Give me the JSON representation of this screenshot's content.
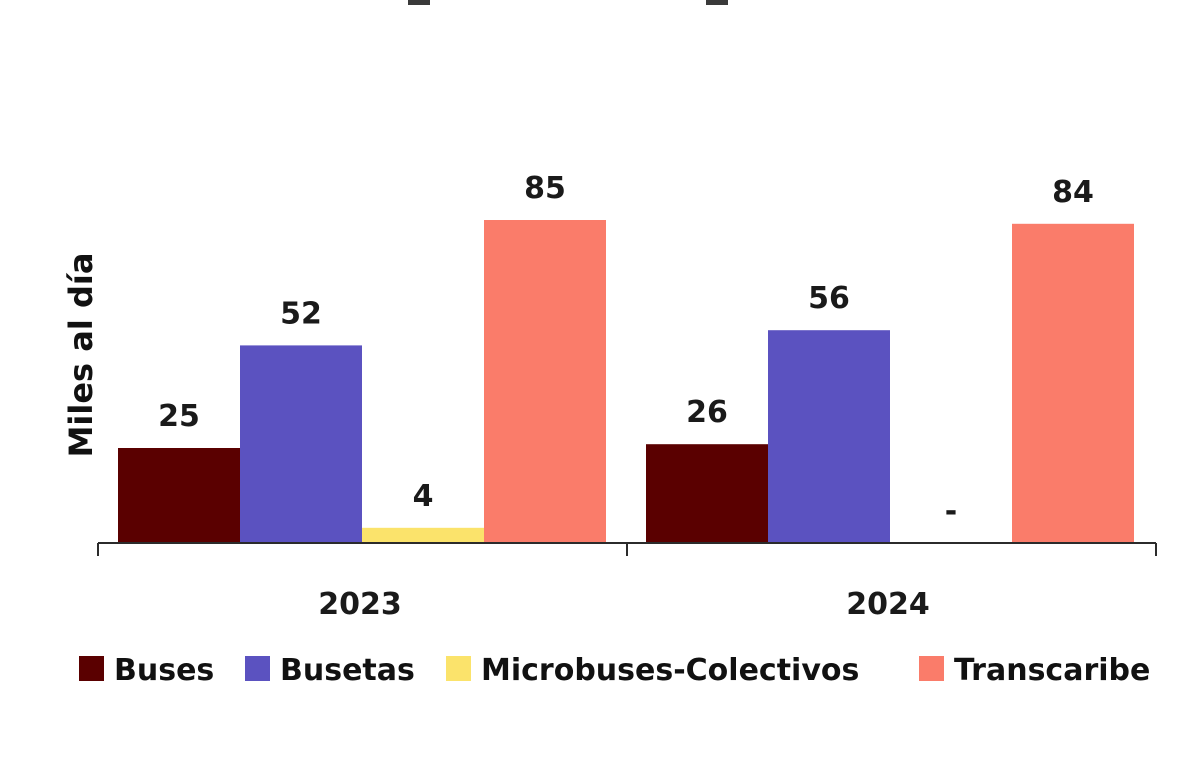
{
  "chart_data": {
    "type": "bar",
    "ylabel": "Miles al día",
    "categories": [
      "2023",
      "2024"
    ],
    "series": [
      {
        "name": "Buses",
        "color": "#5a0000",
        "values": [
          25,
          26
        ],
        "labels": [
          "25",
          "26"
        ]
      },
      {
        "name": "Busetas",
        "color": "#5b52c0",
        "values": [
          52,
          56
        ],
        "labels": [
          "52",
          "56"
        ]
      },
      {
        "name": "Microbuses-Colectivos",
        "color": "#fbe36b",
        "values": [
          4,
          0
        ],
        "labels": [
          "4",
          "-"
        ]
      },
      {
        "name": "Transcaribe",
        "color": "#fa7c6a",
        "values": [
          85,
          84
        ],
        "labels": [
          "85",
          "84"
        ]
      }
    ],
    "ylim": [
      0,
      85
    ],
    "grid": false,
    "legend_position": "bottom"
  }
}
